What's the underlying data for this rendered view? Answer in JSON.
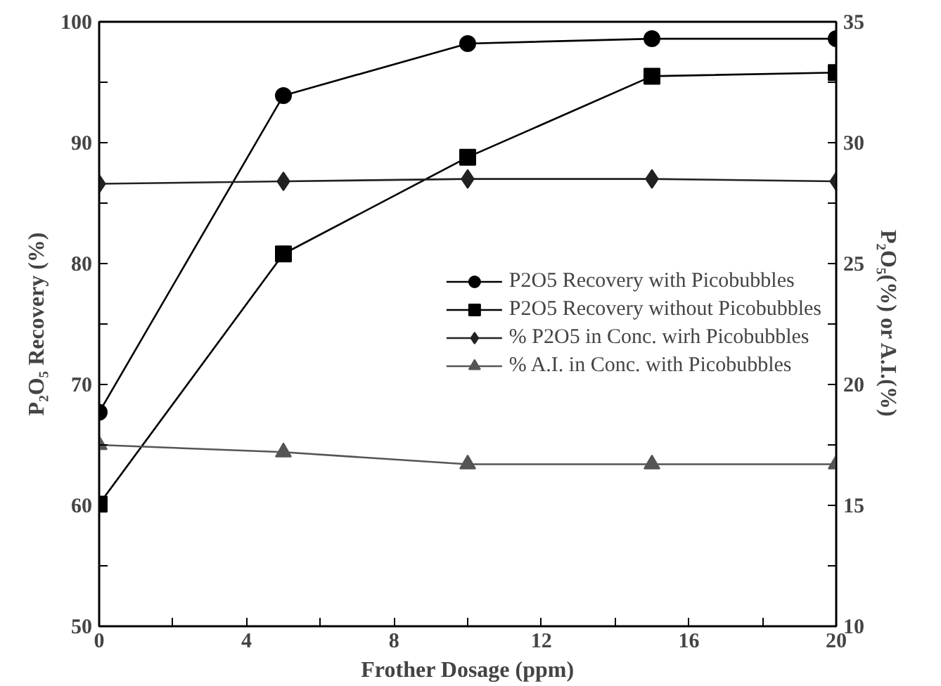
{
  "chart_data": {
    "type": "line",
    "xlabel": "Frother Dosage (ppm)",
    "ylabel": "P₂O₅ Recovery (%)",
    "y2label": "P₂O₅(%) or A.I.(%)",
    "x": [
      0,
      5,
      10,
      15,
      20
    ],
    "xlim": [
      0,
      20
    ],
    "xticks": [
      0,
      {
        "value": 2,
        "label": null
      },
      4,
      {
        "value": 6,
        "label": null
      },
      8,
      {
        "value": 10,
        "label": null
      },
      12,
      {
        "value": 14,
        "label": null
      },
      16,
      {
        "value": 18,
        "label": null
      },
      20
    ],
    "ylim": [
      50,
      100
    ],
    "yticks": [
      50,
      {
        "value": 55,
        "label": null
      },
      60,
      {
        "value": 65,
        "label": null
      },
      70,
      {
        "value": 75,
        "label": null
      },
      80,
      {
        "value": 85,
        "label": null
      },
      90,
      {
        "value": 95,
        "label": null
      },
      100
    ],
    "y2lim": [
      10,
      35
    ],
    "y2ticks": [
      10,
      {
        "value": 12.5,
        "label": null
      },
      15,
      {
        "value": 17.5,
        "label": null
      },
      20,
      {
        "value": 22.5,
        "label": null
      },
      25,
      {
        "value": 27.5,
        "label": null
      },
      30,
      {
        "value": 32.5,
        "label": null
      },
      35
    ],
    "grid": false,
    "legend": "center right",
    "line_style": "solid",
    "series": [
      {
        "name": "P2O5 Recovery with Picobubbles",
        "color": "#000000",
        "marker": "circle",
        "values": [
          67.7,
          93.9,
          98.2,
          98.6,
          98.6
        ]
      },
      {
        "name": "P2O5 Recovery without Picobubbles",
        "color": "#000000",
        "marker": "square",
        "values": [
          60.1,
          80.8,
          88.8,
          95.5,
          95.8
        ]
      },
      {
        "name": "% P2O5 in Conc. wirh Picobubbles",
        "color": "#222222",
        "marker": "diamond",
        "axis": "y2",
        "values": [
          28.3,
          28.4,
          28.5,
          28.5,
          28.4
        ]
      },
      {
        "name": "% A.I. in Conc. with Picobubbles",
        "color": "#555555",
        "marker": "triangle",
        "axis": "y2",
        "values": [
          17.5,
          17.2,
          16.7,
          16.7,
          16.7
        ]
      }
    ]
  }
}
